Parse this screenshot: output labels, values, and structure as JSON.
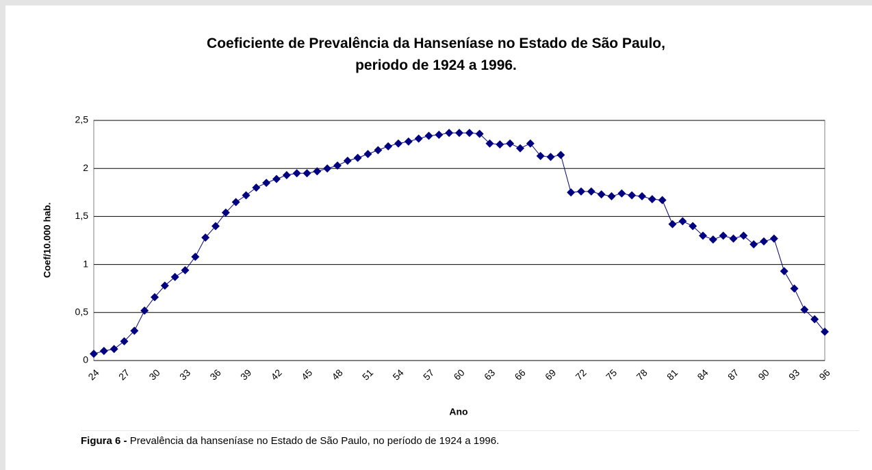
{
  "chart_data": {
    "type": "line",
    "title": "Coeficiente de Prevalência da Hanseníase no Estado de São Paulo, periodo de 1924 a 1996.",
    "x_label": "Ano",
    "y_label": "Coef/10.000 hab.",
    "categories": [
      "24",
      null,
      null,
      "27",
      null,
      null,
      "30",
      null,
      null,
      "33",
      null,
      null,
      "36",
      null,
      null,
      "39",
      null,
      null,
      "42",
      null,
      null,
      "45",
      null,
      null,
      "48",
      null,
      null,
      "51",
      null,
      null,
      "54",
      null,
      null,
      "57",
      null,
      null,
      "60",
      null,
      null,
      "63",
      null,
      null,
      "66",
      null,
      null,
      "69",
      null,
      null,
      "72",
      null,
      null,
      "75",
      null,
      null,
      "78",
      null,
      null,
      "81",
      null,
      null,
      "84",
      null,
      null,
      "87",
      null,
      null,
      "90",
      null,
      null,
      "93",
      null,
      null,
      "96"
    ],
    "values": [
      0.07,
      0.1,
      0.12,
      0.2,
      0.31,
      0.52,
      0.66,
      0.78,
      0.87,
      0.94,
      1.08,
      1.28,
      1.4,
      1.54,
      1.65,
      1.72,
      1.8,
      1.85,
      1.89,
      1.93,
      1.95,
      1.95,
      1.97,
      2.0,
      2.03,
      2.08,
      2.11,
      2.15,
      2.19,
      2.23,
      2.26,
      2.28,
      2.31,
      2.34,
      2.35,
      2.37,
      2.37,
      2.37,
      2.36,
      2.26,
      2.25,
      2.26,
      2.21,
      2.26,
      2.13,
      2.12,
      2.14,
      1.75,
      1.76,
      1.76,
      1.73,
      1.71,
      1.74,
      1.72,
      1.71,
      1.68,
      1.67,
      1.42,
      1.45,
      1.4,
      1.3,
      1.26,
      1.3,
      1.27,
      1.3,
      1.21,
      1.24,
      1.27,
      0.93,
      0.75,
      0.53,
      0.43,
      0.3
    ],
    "color": "#000080",
    "ylim": [
      0,
      2.5
    ],
    "yticks": [
      0,
      {
        "value": 0.5,
        "label": "0,5"
      },
      1,
      {
        "value": 1.5,
        "label": "1,5"
      },
      2,
      {
        "value": 2.5,
        "label": "2,5"
      }
    ],
    "grid": true
  },
  "caption": {
    "label": "Figura 6 -",
    "text": "Prevalência da hanseníase no Estado de São Paulo, no período de 1924 a 1996."
  }
}
